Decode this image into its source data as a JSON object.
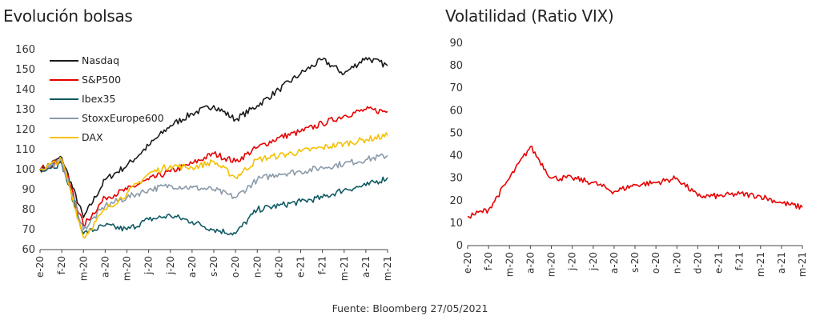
{
  "source": "Fuente: Bloomberg 27/05/2021",
  "chart_data": [
    {
      "type": "line",
      "title": "Evolución bolsas",
      "xlabel": "",
      "ylabel": "",
      "ylim": [
        60,
        160
      ],
      "yticks": [
        60,
        70,
        80,
        90,
        100,
        110,
        120,
        130,
        140,
        150,
        160
      ],
      "x_tick_labels": [
        "e-20",
        "f-20",
        "m-20",
        "a-20",
        "m-20",
        "j-20",
        "j-20",
        "a-20",
        "s-20",
        "o-20",
        "n-20",
        "d-20",
        "e-21",
        "f-21",
        "m-21",
        "a-21",
        "m-21"
      ],
      "legend_position": "top-left",
      "grid": false,
      "x": [
        "e-20",
        "f-20",
        "m-20",
        "a-20",
        "m-20",
        "j-20",
        "j-20",
        "a-20",
        "s-20",
        "o-20",
        "n-20",
        "d-20",
        "e-21",
        "f-21",
        "m-21",
        "a-21",
        "m-21"
      ],
      "series": [
        {
          "name": "Nasdaq",
          "color": "#1a1a1a",
          "values": [
            100,
            106,
            76,
            95,
            102,
            112,
            122,
            128,
            132,
            125,
            132,
            140,
            148,
            155,
            148,
            156,
            152
          ]
        },
        {
          "name": "S&P500",
          "color": "#e60000",
          "values": [
            100,
            105,
            72,
            86,
            90,
            95,
            99,
            103,
            108,
            104,
            111,
            116,
            119,
            123,
            127,
            130,
            129
          ]
        },
        {
          "name": "Ibex35",
          "color": "#0f5a63",
          "values": [
            100,
            103,
            68,
            72,
            70,
            75,
            77,
            74,
            70,
            68,
            80,
            82,
            84,
            86,
            90,
            92,
            96
          ]
        },
        {
          "name": "StoxxEurope600",
          "color": "#8a9aaa",
          "values": [
            100,
            104,
            70,
            82,
            86,
            90,
            92,
            91,
            90,
            86,
            95,
            98,
            99,
            101,
            103,
            105,
            107
          ]
        },
        {
          "name": "DAX",
          "color": "#f5c000",
          "values": [
            100,
            105,
            66,
            80,
            88,
            98,
            102,
            101,
            104,
            96,
            105,
            107,
            109,
            111,
            113,
            115,
            117
          ]
        }
      ]
    },
    {
      "type": "line",
      "title": "Volatilidad (Ratio VIX)",
      "xlabel": "",
      "ylabel": "",
      "ylim": [
        0,
        90
      ],
      "yticks": [
        0,
        10,
        20,
        30,
        40,
        50,
        60,
        70,
        80,
        90
      ],
      "x_tick_labels": [
        "e-20",
        "f-20",
        "m-20",
        "a-20",
        "m-20",
        "j-20",
        "j-20",
        "a-20",
        "s-20",
        "o-20",
        "n-20",
        "d-20",
        "e-21",
        "f-21",
        "m-21",
        "a-21",
        "m-21"
      ],
      "grid": false,
      "x": [
        "e-20",
        "f-20",
        "m-20",
        "a-20",
        "m-20",
        "j-20",
        "j-20",
        "a-20",
        "s-20",
        "o-20",
        "n-20",
        "d-20",
        "e-21",
        "f-21",
        "m-21",
        "a-21",
        "m-21"
      ],
      "series": [
        {
          "color": "#e60000",
          "values": [
            13,
            16,
            30,
            44,
            30,
            30,
            28,
            24,
            27,
            28,
            30,
            22,
            22,
            23,
            22,
            19,
            17
          ]
        }
      ]
    }
  ]
}
